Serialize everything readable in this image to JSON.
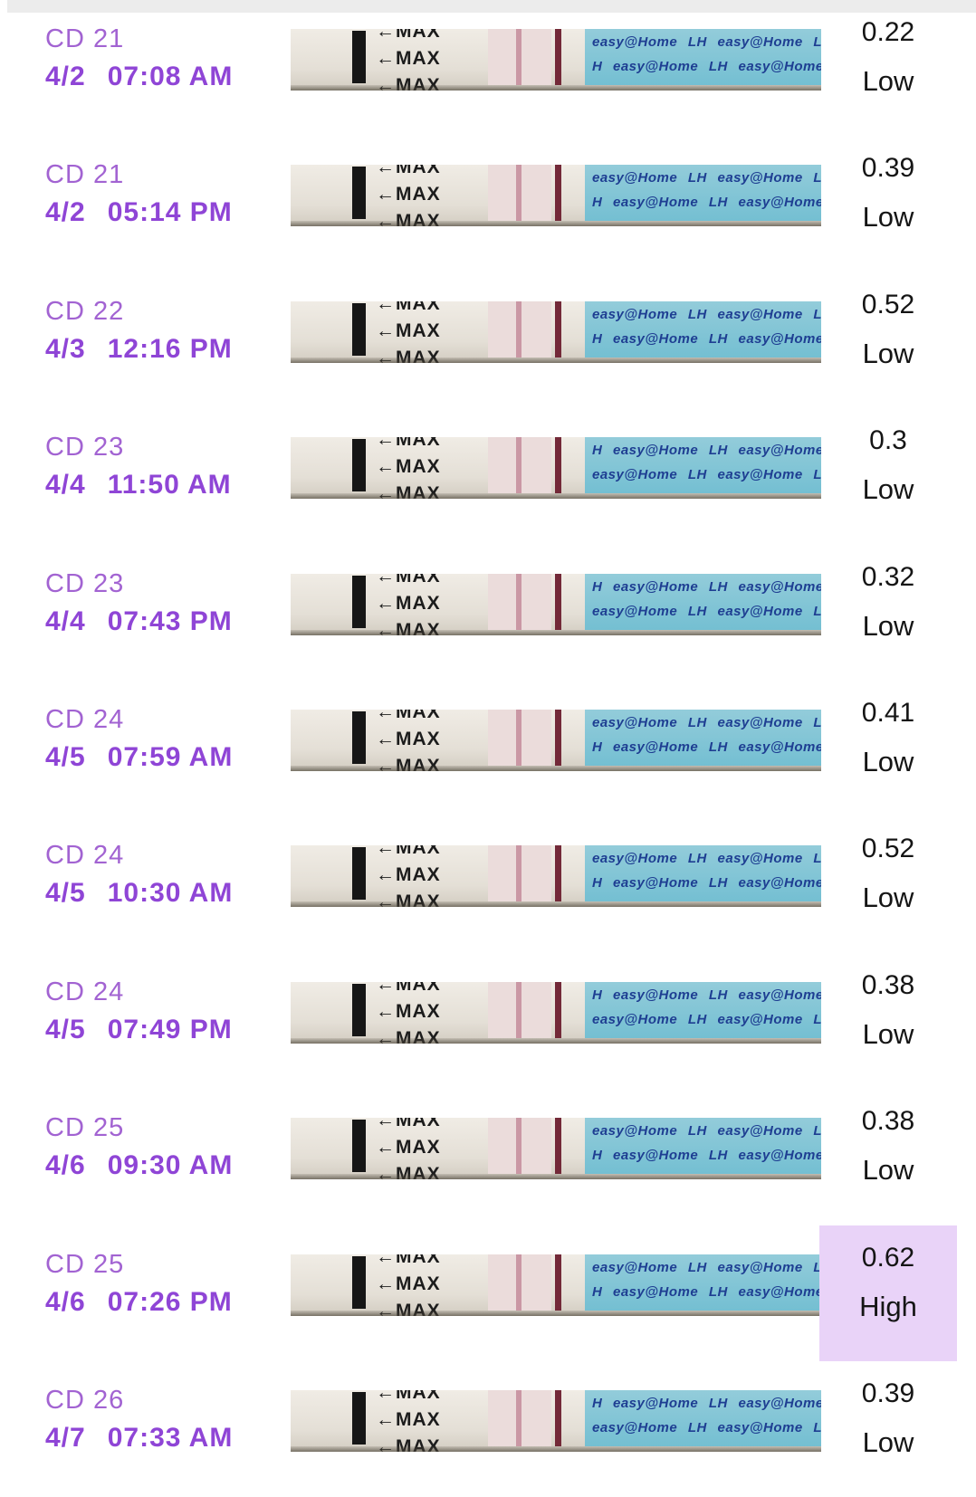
{
  "colors": {
    "top_bar": "#ececec",
    "cd_text": "#a263d2",
    "date_text": "#8f45d6",
    "result_text": "#151515",
    "highlight_bg": "#e9d3f8",
    "strip_label_bg": "#74bfd2",
    "strip_label_text": "#1e3e92",
    "control_line": "#732938",
    "test_line": "#b4697e"
  },
  "brand": "easy@Home",
  "rows": [
    {
      "cycle_day": "CD 21",
      "date": "4/2",
      "time": "07:08 AM",
      "value": "0.22",
      "level": "Low",
      "highlighted": false,
      "strip": {
        "max_label": "←MAX",
        "label_line1": "easy@Home LH easy@Home LH",
        "label_line2": "H easy@Home LH easy@Home L"
      }
    },
    {
      "cycle_day": "CD 21",
      "date": "4/2",
      "time": "05:14 PM",
      "value": "0.39",
      "level": "Low",
      "highlighted": false,
      "strip": {
        "max_label": "←MAX",
        "label_line1": "easy@Home LH easy@Home LH",
        "label_line2": "H easy@Home LH easy@Home L"
      }
    },
    {
      "cycle_day": "CD 22",
      "date": "4/3",
      "time": "12:16 PM",
      "value": "0.52",
      "level": "Low",
      "highlighted": false,
      "strip": {
        "max_label": "←MAX",
        "label_line1": "easy@Home LH easy@Home LH",
        "label_line2": "H easy@Home LH easy@Home L"
      }
    },
    {
      "cycle_day": "CD 23",
      "date": "4/4",
      "time": "11:50 AM",
      "value": "0.3",
      "level": "Low",
      "highlighted": false,
      "strip": {
        "max_label": "←MAX",
        "label_line1": "H easy@Home LH easy@Home L",
        "label_line2": "easy@Home LH easy@Home LH"
      }
    },
    {
      "cycle_day": "CD 23",
      "date": "4/4",
      "time": "07:43 PM",
      "value": "0.32",
      "level": "Low",
      "highlighted": false,
      "strip": {
        "max_label": "←MAX",
        "label_line1": "H easy@Home LH easy@Home LH",
        "label_line2": "easy@Home LH easy@Home LH"
      }
    },
    {
      "cycle_day": "CD 24",
      "date": "4/5",
      "time": "07:59 AM",
      "value": "0.41",
      "level": "Low",
      "highlighted": false,
      "strip": {
        "max_label": "←MAX",
        "label_line1": "easy@Home LH easy@Home LH",
        "label_line2": "H easy@Home LH easy@Home L"
      }
    },
    {
      "cycle_day": "CD 24",
      "date": "4/5",
      "time": "10:30 AM",
      "value": "0.52",
      "level": "Low",
      "highlighted": false,
      "strip": {
        "max_label": "←MAX",
        "label_line1": "easy@Home LH easy@Home LH",
        "label_line2": "H easy@Home LH easy@Home L"
      }
    },
    {
      "cycle_day": "CD 24",
      "date": "4/5",
      "time": "07:49 PM",
      "value": "0.38",
      "level": "Low",
      "highlighted": false,
      "strip": {
        "max_label": "←MAX",
        "label_line1": "H easy@Home LH easy@Home L",
        "label_line2": "easy@Home LH easy@Home LH"
      }
    },
    {
      "cycle_day": "CD 25",
      "date": "4/6",
      "time": "09:30 AM",
      "value": "0.38",
      "level": "Low",
      "highlighted": false,
      "strip": {
        "max_label": "←MAX",
        "label_line1": "easy@Home LH easy@Home LH",
        "label_line2": "H easy@Home LH easy@Home L"
      }
    },
    {
      "cycle_day": "CD 25",
      "date": "4/6",
      "time": "07:26 PM",
      "value": "0.62",
      "level": "High",
      "highlighted": true,
      "strip": {
        "max_label": "←MAX",
        "label_line1": "easy@Home LH easy@Home LH",
        "label_line2": "H easy@Home LH easy@Home"
      }
    },
    {
      "cycle_day": "CD 26",
      "date": "4/7",
      "time": "07:33 AM",
      "value": "0.39",
      "level": "Low",
      "highlighted": false,
      "strip": {
        "max_label": "←MAX",
        "label_line1": "H easy@Home LH easy@Home LH",
        "label_line2": "easy@Home LH easy@Home LH"
      }
    }
  ]
}
